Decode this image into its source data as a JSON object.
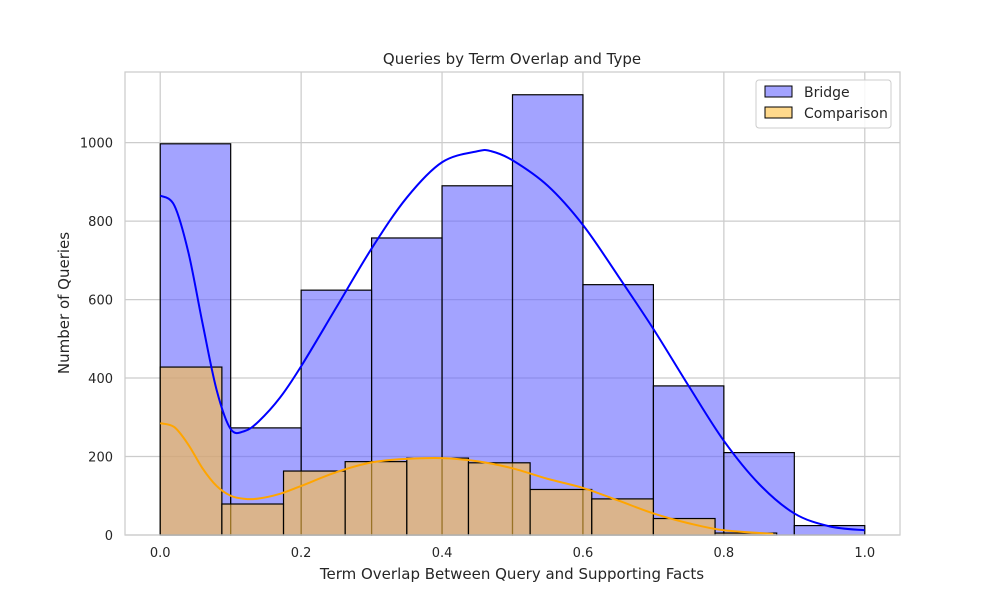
{
  "chart_data": {
    "type": "histogram",
    "title": "Queries by Term Overlap and Type",
    "xlabel": "Term Overlap Between Query and Supporting Facts",
    "ylabel": "Number of Queries",
    "xlim": [
      -0.05,
      1.05
    ],
    "ylim": [
      0,
      1180
    ],
    "xticks": [
      0.0,
      0.2,
      0.4,
      0.6,
      0.8,
      1.0
    ],
    "xtick_labels": [
      "0.0",
      "0.2",
      "0.4",
      "0.6",
      "0.8",
      "1.0"
    ],
    "yticks": [
      0,
      200,
      400,
      600,
      800,
      1000
    ],
    "ytick_labels": [
      "0",
      "200",
      "400",
      "600",
      "800",
      "1000"
    ],
    "grid": true,
    "legend_position": "top-right",
    "series": [
      {
        "name": "Bridge",
        "color": "#6666ff",
        "edge_color": "#000000",
        "kde_color": "#0000ff",
        "bin_edges": [
          0.0,
          0.1,
          0.2,
          0.3,
          0.4,
          0.5,
          0.6,
          0.7,
          0.8,
          0.9,
          1.0
        ],
        "counts": [
          997,
          273,
          624,
          757,
          890,
          1122,
          638,
          380,
          210,
          24
        ],
        "kde_x": [
          0.0,
          0.02,
          0.04,
          0.06,
          0.08,
          0.1,
          0.12,
          0.14,
          0.17,
          0.2,
          0.25,
          0.3,
          0.35,
          0.4,
          0.45,
          0.47,
          0.5,
          0.55,
          0.6,
          0.65,
          0.7,
          0.75,
          0.8,
          0.85,
          0.9,
          0.95,
          1.0
        ],
        "kde_y": [
          865,
          840,
          720,
          540,
          370,
          270,
          265,
          290,
          350,
          430,
          580,
          730,
          860,
          950,
          978,
          978,
          955,
          890,
          790,
          660,
          525,
          380,
          240,
          130,
          55,
          22,
          12
        ]
      },
      {
        "name": "Comparison",
        "color": "#ffbf40",
        "edge_color": "#000000",
        "kde_color": "#ffa500",
        "bin_edges": [
          0.0,
          0.0875,
          0.175,
          0.2625,
          0.35,
          0.4375,
          0.525,
          0.6125,
          0.7,
          0.7875,
          0.875
        ],
        "counts": [
          428,
          79,
          163,
          187,
          196,
          184,
          116,
          92,
          42,
          5
        ],
        "kde_x": [
          0.0,
          0.02,
          0.04,
          0.06,
          0.08,
          0.1,
          0.12,
          0.14,
          0.17,
          0.2,
          0.25,
          0.3,
          0.35,
          0.4,
          0.45,
          0.5,
          0.55,
          0.6,
          0.65,
          0.7,
          0.75,
          0.8,
          0.87
        ],
        "kde_y": [
          285,
          275,
          230,
          170,
          125,
          100,
          92,
          93,
          105,
          125,
          160,
          185,
          194,
          196,
          188,
          170,
          143,
          120,
          88,
          55,
          30,
          12,
          3
        ]
      }
    ]
  }
}
